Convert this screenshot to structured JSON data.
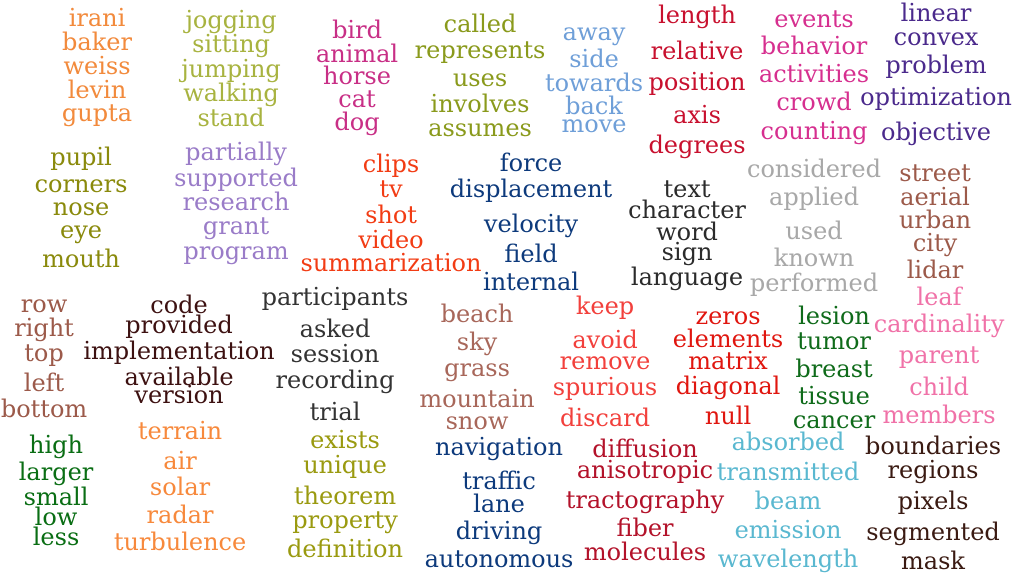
{
  "topics": [
    {
      "color": "#f28a3c",
      "words": [
        "irani",
        "baker",
        "weiss",
        "levin",
        "gupta"
      ]
    },
    {
      "color": "#a8b340",
      "words": [
        "jogging",
        "sitting",
        "jumping",
        "walking",
        "stand"
      ]
    },
    {
      "color": "#c82f86",
      "words": [
        "bird",
        "animal",
        "horse",
        "cat",
        "dog"
      ]
    },
    {
      "color": "#8a9a1c",
      "words": [
        "called",
        "represents",
        "uses",
        "involves",
        "assumes"
      ]
    },
    {
      "color": "#6f9fd8",
      "words": [
        "away",
        "side",
        "towards",
        "back",
        "move"
      ]
    },
    {
      "color": "#c8102e",
      "words": [
        "length",
        "relative",
        "position",
        "axis",
        "degrees"
      ]
    },
    {
      "color": "#d62f8f",
      "words": [
        "events",
        "behavior",
        "activities",
        "crowd",
        "counting"
      ]
    },
    {
      "color": "#4b2a8c",
      "words": [
        "linear",
        "convex",
        "problem",
        "optimization",
        "objective"
      ]
    },
    {
      "color": "#8a8a0c",
      "words": [
        "pupil",
        "corners",
        "nose",
        "eye",
        "mouth"
      ]
    },
    {
      "color": "#9a7cc8",
      "words": [
        "partially",
        "supported",
        "research",
        "grant",
        "program"
      ]
    },
    {
      "color": "#f23c14",
      "words": [
        "clips",
        "tv",
        "shot",
        "video",
        "summarization"
      ]
    },
    {
      "color": "#0d3a7c",
      "words": [
        "force",
        "displacement",
        "velocity",
        "field",
        "internal"
      ]
    },
    {
      "color": "#2b2b2b",
      "words": [
        "text",
        "character",
        "word",
        "sign",
        "language"
      ]
    },
    {
      "color": "#a8a8a8",
      "words": [
        "considered",
        "applied",
        "used",
        "known",
        "performed"
      ]
    },
    {
      "color": "#9c5a4a",
      "words": [
        "street",
        "aerial",
        "urban",
        "city",
        "lidar"
      ]
    },
    {
      "color": "#9c5a4a",
      "words": [
        "row",
        "right",
        "top",
        "left",
        "bottom"
      ]
    },
    {
      "color": "#3d1111",
      "words": [
        "code",
        "provided",
        "implementation",
        "available",
        "version"
      ]
    },
    {
      "color": "#333333",
      "words": [
        "participants",
        "asked",
        "session",
        "recording",
        "trial"
      ]
    },
    {
      "color": "#a8675a",
      "words": [
        "beach",
        "sky",
        "grass",
        "mountain",
        "snow"
      ]
    },
    {
      "color": "#f2403c",
      "words": [
        "keep",
        "avoid",
        "remove",
        "spurious",
        "discard"
      ]
    },
    {
      "color": "#e0160f",
      "words": [
        "zeros",
        "elements",
        "matrix",
        "diagonal",
        "null"
      ]
    },
    {
      "color": "#0f6b1a",
      "words": [
        "lesion",
        "tumor",
        "breast",
        "tissue",
        "cancer"
      ]
    },
    {
      "color": "#f072a8",
      "words": [
        "leaf",
        "cardinality",
        "parent",
        "child",
        "members"
      ]
    },
    {
      "color": "#0a6e14",
      "words": [
        "high",
        "larger",
        "small",
        "low",
        "less"
      ]
    },
    {
      "color": "#f7893c",
      "words": [
        "terrain",
        "air",
        "solar",
        "radar",
        "turbulence"
      ]
    },
    {
      "color": "#9a9a10",
      "words": [
        "exists",
        "unique",
        "theorem",
        "property",
        "definition"
      ]
    },
    {
      "color": "#0d3a7c",
      "words": [
        "navigation",
        "traffic",
        "lane",
        "driving",
        "autonomous"
      ]
    },
    {
      "color": "#b3122a",
      "words": [
        "diffusion",
        "anisotropic",
        "tractography",
        "fiber",
        "molecules"
      ]
    },
    {
      "color": "#5ab8d0",
      "words": [
        "absorbed",
        "transmitted",
        "beam",
        "emission",
        "wavelength"
      ]
    },
    {
      "color": "#3a1a12",
      "words": [
        "boundaries",
        "regions",
        "pixels",
        "segmented",
        "mask"
      ]
    }
  ]
}
